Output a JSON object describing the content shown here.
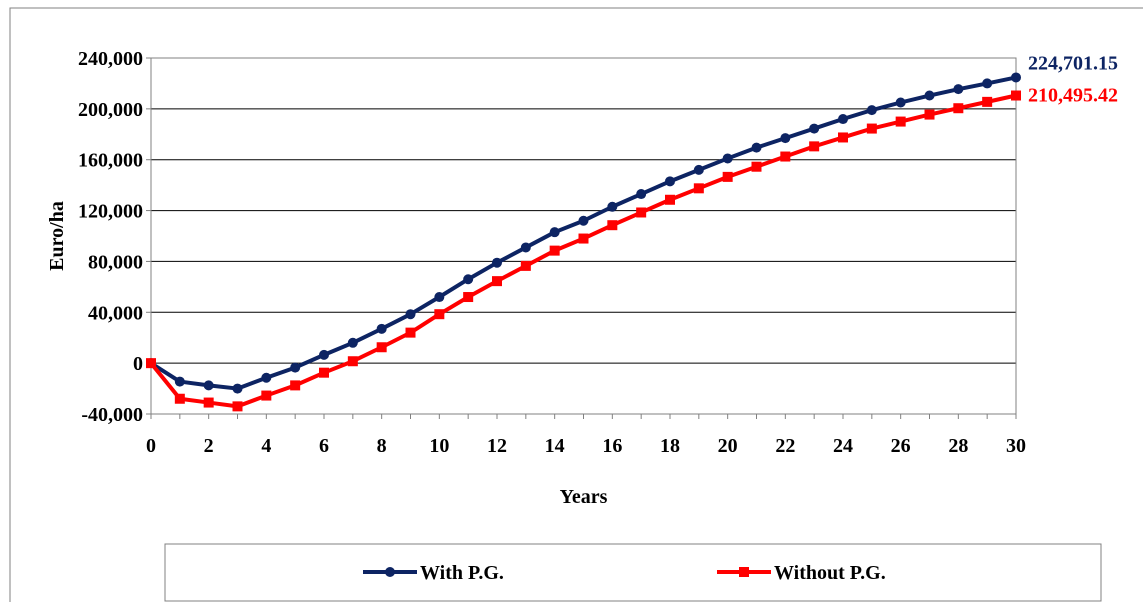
{
  "chart_data": {
    "type": "line",
    "title": "",
    "xlabel": "Years",
    "ylabel": "Euro/ha",
    "xlim": [
      0,
      30
    ],
    "ylim": [
      -40000,
      240000
    ],
    "x_ticks": [
      "0",
      "2",
      "4",
      "6",
      "8",
      "10",
      "12",
      "14",
      "16",
      "18",
      "20",
      "22",
      "24",
      "26",
      "28",
      "30"
    ],
    "y_ticks": [
      "240,000",
      "200,000",
      "160,000",
      "120,000",
      "80,000",
      "40,000",
      "0",
      "-40,000"
    ],
    "grid": "horizontal",
    "legend_position": "bottom",
    "x": [
      0,
      1,
      2,
      3,
      4,
      5,
      6,
      7,
      8,
      9,
      10,
      11,
      12,
      13,
      14,
      15,
      16,
      17,
      18,
      19,
      20,
      21,
      22,
      23,
      24,
      25,
      26,
      27,
      28,
      29,
      30
    ],
    "series": [
      {
        "name": "With P.G.",
        "color": "#0d2463",
        "marker": "circle",
        "values": [
          0,
          -14500,
          -17500,
          -20000,
          -11500,
          -3500,
          6500,
          16000,
          27000,
          38500,
          52000,
          66000,
          79000,
          91000,
          103000,
          112000,
          123000,
          133000,
          143000,
          152000,
          161000,
          169500,
          177000,
          184500,
          192000,
          199000,
          205000,
          210500,
          215500,
          220000,
          224701.15
        ]
      },
      {
        "name": "Without P.G.",
        "color": "#ff0000",
        "marker": "square",
        "values": [
          0,
          -28000,
          -31000,
          -34000,
          -25500,
          -17500,
          -7500,
          1500,
          12500,
          24000,
          38500,
          52000,
          64500,
          76500,
          88500,
          98000,
          108500,
          118500,
          128500,
          137500,
          146500,
          154500,
          162500,
          170500,
          177500,
          184500,
          190000,
          195500,
          200500,
          205500,
          210495.42
        ]
      }
    ],
    "end_labels": [
      {
        "text": "224,701.15",
        "color": "#0d2463"
      },
      {
        "text": "210,495.42",
        "color": "#ff0000"
      }
    ]
  }
}
